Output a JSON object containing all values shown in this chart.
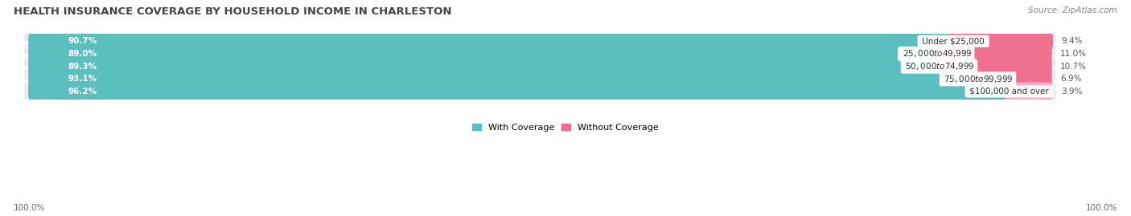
{
  "title": "HEALTH INSURANCE COVERAGE BY HOUSEHOLD INCOME IN CHARLESTON",
  "source": "Source: ZipAtlas.com",
  "categories": [
    "Under $25,000",
    "$25,000 to $49,999",
    "$50,000 to $74,999",
    "$75,000 to $99,999",
    "$100,000 and over"
  ],
  "with_coverage": [
    90.7,
    89.0,
    89.3,
    93.1,
    96.2
  ],
  "without_coverage": [
    9.4,
    11.0,
    10.7,
    6.9,
    3.9
  ],
  "color_coverage": "#5BBFBF",
  "color_no_coverage": "#F07090",
  "color_no_coverage_last": "#F4A0BA",
  "row_bg_color": "#EBEBEB",
  "title_fontsize": 9.5,
  "source_fontsize": 7.5,
  "label_fontsize": 7.5,
  "value_fontsize": 7.5,
  "tick_fontsize": 7.5,
  "legend_fontsize": 8,
  "x_left_label": "100.0%",
  "x_right_label": "100.0%"
}
